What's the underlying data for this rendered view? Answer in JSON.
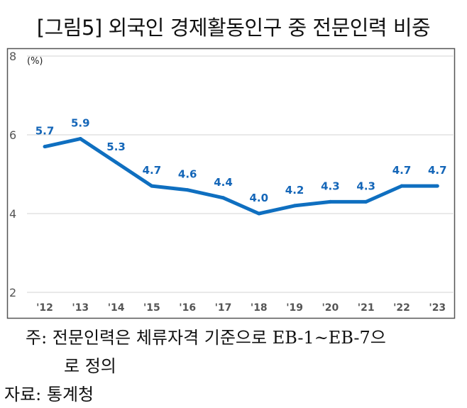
{
  "chart_data": {
    "type": "line",
    "title": "[그림5] 외국인 경제활동인구 중 전문인력 비중",
    "unit_label": "(%)",
    "categories": [
      "'12",
      "'13",
      "'14",
      "'15",
      "'16",
      "'17",
      "'18",
      "'19",
      "'20",
      "'21",
      "'22",
      "'23"
    ],
    "series": [
      {
        "values": [
          5.7,
          5.9,
          5.3,
          4.7,
          4.6,
          4.4,
          4.0,
          4.2,
          4.3,
          4.3,
          4.7,
          4.7
        ]
      }
    ],
    "data_labels": [
      "5.7",
      "5.9",
      "5.3",
      "4.7",
      "4.6",
      "4.4",
      "4.0",
      "4.2",
      "4.3",
      "4.3",
      "4.7",
      "4.7"
    ],
    "yticks": [
      2,
      4,
      6,
      8
    ],
    "ylim": [
      2,
      8
    ],
    "grid": true,
    "line_color": "#0f6fc0",
    "label_color": "#1466b8"
  },
  "notes": {
    "note_line1": "주:  전문인력은  체류자격  기준으로  EB-1~EB-7으",
    "note_line2": "로  정의",
    "source": "자료:  통계청"
  }
}
